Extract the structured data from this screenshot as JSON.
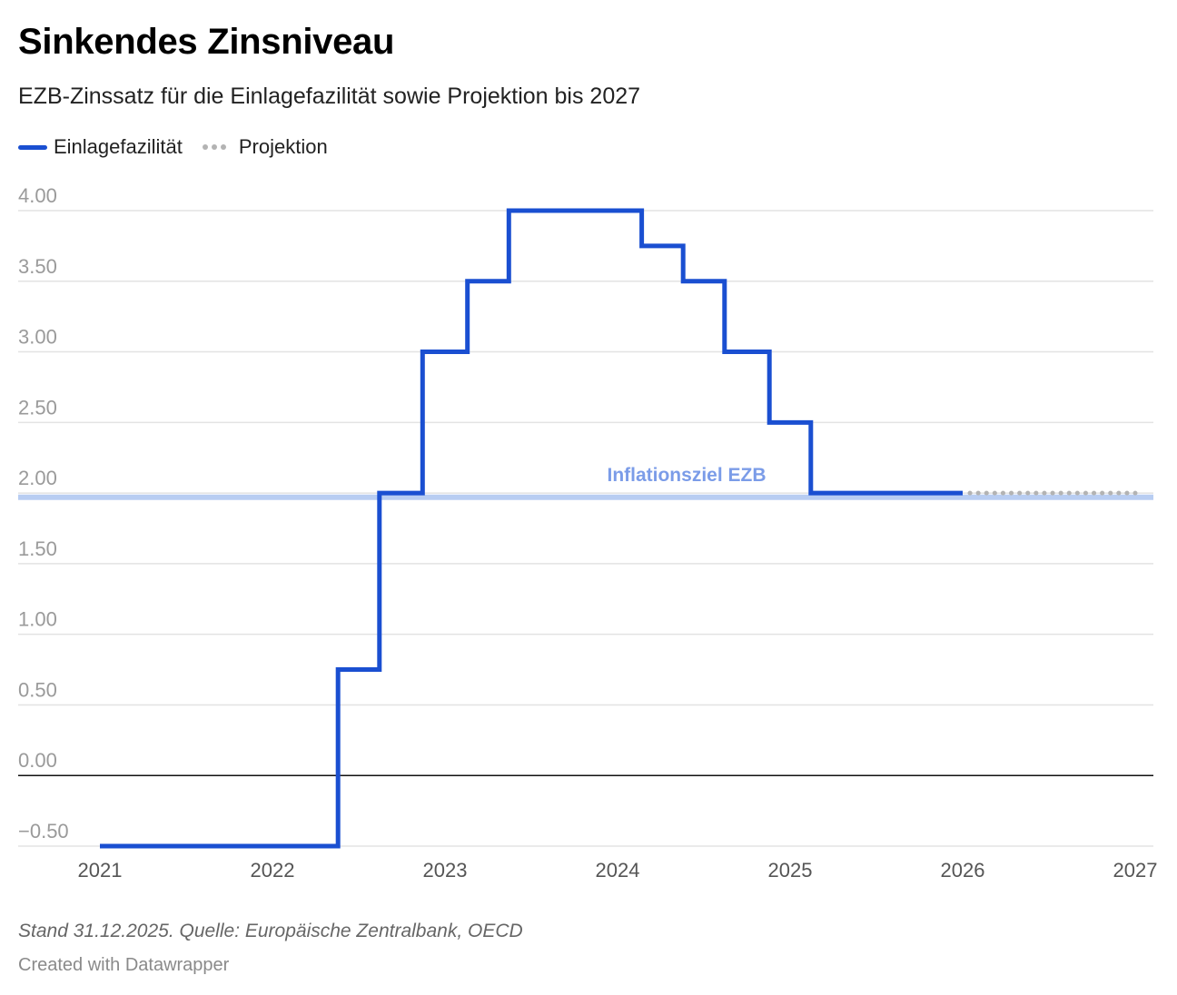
{
  "chart_data": {
    "type": "line",
    "title": "Sinkendes Zinsniveau",
    "subtitle": "EZB-Zinssatz für die Einlagefazilität sowie Projektion bis 2027",
    "legend": [
      {
        "label": "Einlagefazilität",
        "color": "#1a4fd1",
        "style": "solid"
      },
      {
        "label": "Projektion",
        "color": "#b3b3b3",
        "style": "dotted"
      }
    ],
    "y_ticks": [
      4.0,
      3.5,
      3.0,
      2.5,
      2.0,
      1.5,
      1.0,
      0.5,
      0.0,
      -0.5
    ],
    "y_tick_labels": [
      "4.00",
      "3.50",
      "3.00",
      "2.50",
      "2.00",
      "1.50",
      "1.00",
      "0.50",
      "0.00",
      "−0.50"
    ],
    "ylim": [
      -0.5,
      4.0
    ],
    "x_ticks": [
      2021,
      2022,
      2023,
      2024,
      2025,
      2026,
      2027
    ],
    "xlim": [
      2021,
      2027
    ],
    "series": [
      {
        "name": "Einlagefazilität",
        "color": "#1a4fd1",
        "step": true,
        "points": [
          [
            2021.0,
            -0.5
          ],
          [
            2022.38,
            0.75
          ],
          [
            2022.62,
            2.0
          ],
          [
            2022.87,
            3.0
          ],
          [
            2023.13,
            3.5
          ],
          [
            2023.37,
            4.0
          ],
          [
            2024.14,
            3.75
          ],
          [
            2024.38,
            3.5
          ],
          [
            2024.62,
            3.0
          ],
          [
            2024.88,
            2.5
          ],
          [
            2025.12,
            2.0
          ],
          [
            2026.0,
            2.0
          ]
        ]
      },
      {
        "name": "Projektion",
        "color": "#b3b3b3",
        "style": "dotted",
        "points": [
          [
            2026.0,
            2.0
          ],
          [
            2027.0,
            2.0
          ]
        ]
      }
    ],
    "reference_line": {
      "value": 1.97,
      "label": "Inflationsziel EZB",
      "color": "#b8cdf2",
      "label_color": "#7b9ce8"
    },
    "zero_line": 0.0
  },
  "footer": {
    "notes": "Stand 31.12.2025. Quelle: Europäische Zentralbank, OECD",
    "credit": "Created with Datawrapper"
  }
}
